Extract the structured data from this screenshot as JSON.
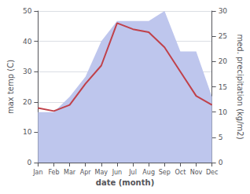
{
  "chart_data": {
    "type": "line",
    "categories": [
      "Jan",
      "Feb",
      "Mar",
      "Apr",
      "May",
      "Jun",
      "Jul",
      "Aug",
      "Sep",
      "Oct",
      "Nov",
      "Dec"
    ],
    "series": [
      {
        "type": "area",
        "color": "#bec6ed",
        "axis": "y2",
        "values": [
          10,
          10,
          13,
          17,
          24,
          28,
          28,
          28,
          30,
          22,
          22,
          13
        ]
      },
      {
        "type": "line",
        "color": "#c0414a",
        "values": [
          18,
          17,
          19,
          26,
          32,
          46,
          44,
          43,
          38,
          30,
          22,
          19
        ]
      }
    ],
    "xlabel": "date (month)",
    "ylabel": "max temp (C)",
    "y2label": "med. precipitation (kg/m2)",
    "ylim": [
      0,
      50
    ],
    "yticks": [
      0,
      10,
      20,
      30,
      40,
      50
    ],
    "y2lim": [
      0,
      30
    ],
    "y2ticks": [
      0,
      5,
      10,
      15,
      20,
      25,
      30
    ],
    "grid": true
  }
}
